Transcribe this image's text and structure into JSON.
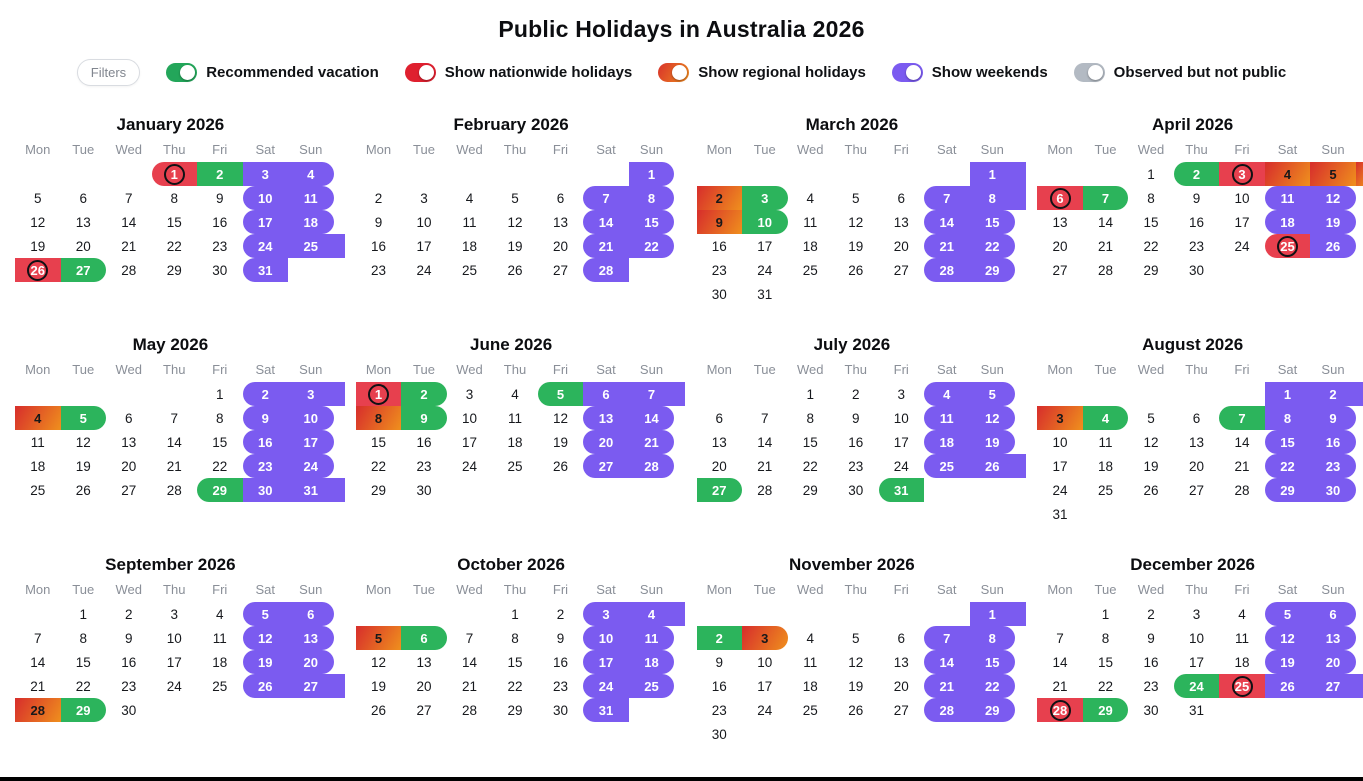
{
  "title": "Public Holidays in Australia 2026",
  "filters": {
    "button_label": "Filters",
    "toggles": [
      {
        "label": "Recommended vacation",
        "color": "#23a65a",
        "on": true
      },
      {
        "label": "Show nationwide holidays",
        "color": "#df202f",
        "on": true
      },
      {
        "label": "Show regional holidays",
        "gradient": [
          "#d8322b",
          "#ee8b1e"
        ],
        "on": true
      },
      {
        "label": "Show weekends",
        "color": "#7b5bf0",
        "on": true
      },
      {
        "label": "Observed but not public",
        "color": "#b3bac3",
        "on": true
      }
    ]
  },
  "calendar": {
    "weekday_labels": [
      "Mon",
      "Tue",
      "Wed",
      "Thu",
      "Fri",
      "Sat",
      "Sun"
    ],
    "colors": {
      "nationwide": "#e7404e",
      "vacation": "#2cb45c",
      "weekend": "#7b5bf0",
      "regional_from": "#d8322b",
      "regional_to": "#ee8b1e"
    },
    "months": [
      {
        "name": "January 2026",
        "days": 31,
        "first_dow": 3,
        "highlights": [
          {
            "day": 1,
            "type": "nationwide",
            "circled": true
          },
          {
            "day": 2,
            "type": "vacation"
          },
          {
            "day": 3,
            "type": "weekend"
          },
          {
            "day": 4,
            "type": "weekend"
          },
          {
            "day": 10,
            "type": "weekend"
          },
          {
            "day": 11,
            "type": "weekend"
          },
          {
            "day": 17,
            "type": "weekend"
          },
          {
            "day": 18,
            "type": "weekend"
          },
          {
            "day": 24,
            "type": "weekend"
          },
          {
            "day": 25,
            "type": "weekend"
          },
          {
            "day": 26,
            "type": "nationwide",
            "circled": true
          },
          {
            "day": 27,
            "type": "vacation"
          },
          {
            "day": 31,
            "type": "weekend"
          }
        ]
      },
      {
        "name": "February 2026",
        "days": 28,
        "first_dow": 6,
        "highlights": [
          {
            "day": 1,
            "type": "weekend"
          },
          {
            "day": 7,
            "type": "weekend"
          },
          {
            "day": 8,
            "type": "weekend"
          },
          {
            "day": 14,
            "type": "weekend"
          },
          {
            "day": 15,
            "type": "weekend"
          },
          {
            "day": 21,
            "type": "weekend"
          },
          {
            "day": 22,
            "type": "weekend"
          },
          {
            "day": 28,
            "type": "weekend"
          }
        ]
      },
      {
        "name": "March 2026",
        "days": 31,
        "first_dow": 6,
        "highlights": [
          {
            "day": 1,
            "type": "weekend"
          },
          {
            "day": 2,
            "type": "regional"
          },
          {
            "day": 3,
            "type": "vacation"
          },
          {
            "day": 7,
            "type": "weekend"
          },
          {
            "day": 8,
            "type": "weekend"
          },
          {
            "day": 9,
            "type": "regional"
          },
          {
            "day": 10,
            "type": "vacation"
          },
          {
            "day": 14,
            "type": "weekend"
          },
          {
            "day": 15,
            "type": "weekend"
          },
          {
            "day": 21,
            "type": "weekend"
          },
          {
            "day": 22,
            "type": "weekend"
          },
          {
            "day": 28,
            "type": "weekend"
          },
          {
            "day": 29,
            "type": "weekend"
          }
        ]
      },
      {
        "name": "April 2026",
        "days": 30,
        "first_dow": 2,
        "highlights": [
          {
            "day": 2,
            "type": "vacation"
          },
          {
            "day": 3,
            "type": "nationwide",
            "circled": true
          },
          {
            "day": 4,
            "type": "regional"
          },
          {
            "day": 5,
            "type": "regional"
          },
          {
            "day": 6,
            "type": "nationwide",
            "circled": true
          },
          {
            "day": 7,
            "type": "vacation"
          },
          {
            "day": 11,
            "type": "weekend"
          },
          {
            "day": 12,
            "type": "weekend"
          },
          {
            "day": 18,
            "type": "weekend"
          },
          {
            "day": 19,
            "type": "weekend"
          },
          {
            "day": 25,
            "type": "nationwide",
            "circled": true
          },
          {
            "day": 26,
            "type": "weekend"
          }
        ]
      },
      {
        "name": "May 2026",
        "days": 31,
        "first_dow": 4,
        "highlights": [
          {
            "day": 2,
            "type": "weekend"
          },
          {
            "day": 3,
            "type": "weekend"
          },
          {
            "day": 4,
            "type": "regional"
          },
          {
            "day": 5,
            "type": "vacation"
          },
          {
            "day": 9,
            "type": "weekend"
          },
          {
            "day": 10,
            "type": "weekend"
          },
          {
            "day": 16,
            "type": "weekend"
          },
          {
            "day": 17,
            "type": "weekend"
          },
          {
            "day": 23,
            "type": "weekend"
          },
          {
            "day": 24,
            "type": "weekend"
          },
          {
            "day": 29,
            "type": "vacation"
          },
          {
            "day": 30,
            "type": "weekend"
          },
          {
            "day": 31,
            "type": "weekend"
          }
        ]
      },
      {
        "name": "June 2026",
        "days": 30,
        "first_dow": 0,
        "highlights": [
          {
            "day": 1,
            "type": "nationwide",
            "circled": true
          },
          {
            "day": 2,
            "type": "vacation"
          },
          {
            "day": 5,
            "type": "vacation"
          },
          {
            "day": 6,
            "type": "weekend"
          },
          {
            "day": 7,
            "type": "weekend"
          },
          {
            "day": 8,
            "type": "regional"
          },
          {
            "day": 9,
            "type": "vacation"
          },
          {
            "day": 13,
            "type": "weekend"
          },
          {
            "day": 14,
            "type": "weekend"
          },
          {
            "day": 20,
            "type": "weekend"
          },
          {
            "day": 21,
            "type": "weekend"
          },
          {
            "day": 27,
            "type": "weekend"
          },
          {
            "day": 28,
            "type": "weekend"
          }
        ]
      },
      {
        "name": "July 2026",
        "days": 31,
        "first_dow": 2,
        "highlights": [
          {
            "day": 4,
            "type": "weekend"
          },
          {
            "day": 5,
            "type": "weekend"
          },
          {
            "day": 11,
            "type": "weekend"
          },
          {
            "day": 12,
            "type": "weekend"
          },
          {
            "day": 18,
            "type": "weekend"
          },
          {
            "day": 19,
            "type": "weekend"
          },
          {
            "day": 25,
            "type": "weekend"
          },
          {
            "day": 26,
            "type": "weekend"
          },
          {
            "day": 27,
            "type": "vacation"
          },
          {
            "day": 31,
            "type": "vacation"
          }
        ]
      },
      {
        "name": "August 2026",
        "days": 31,
        "first_dow": 5,
        "highlights": [
          {
            "day": 1,
            "type": "weekend"
          },
          {
            "day": 2,
            "type": "weekend"
          },
          {
            "day": 3,
            "type": "regional"
          },
          {
            "day": 4,
            "type": "vacation"
          },
          {
            "day": 7,
            "type": "vacation"
          },
          {
            "day": 8,
            "type": "weekend"
          },
          {
            "day": 9,
            "type": "weekend"
          },
          {
            "day": 15,
            "type": "weekend"
          },
          {
            "day": 16,
            "type": "weekend"
          },
          {
            "day": 22,
            "type": "weekend"
          },
          {
            "day": 23,
            "type": "weekend"
          },
          {
            "day": 29,
            "type": "weekend"
          },
          {
            "day": 30,
            "type": "weekend"
          }
        ]
      },
      {
        "name": "September 2026",
        "days": 30,
        "first_dow": 1,
        "highlights": [
          {
            "day": 5,
            "type": "weekend"
          },
          {
            "day": 6,
            "type": "weekend"
          },
          {
            "day": 12,
            "type": "weekend"
          },
          {
            "day": 13,
            "type": "weekend"
          },
          {
            "day": 19,
            "type": "weekend"
          },
          {
            "day": 20,
            "type": "weekend"
          },
          {
            "day": 26,
            "type": "weekend"
          },
          {
            "day": 27,
            "type": "weekend"
          },
          {
            "day": 28,
            "type": "regional"
          },
          {
            "day": 29,
            "type": "vacation"
          }
        ]
      },
      {
        "name": "October 2026",
        "days": 31,
        "first_dow": 3,
        "highlights": [
          {
            "day": 3,
            "type": "weekend"
          },
          {
            "day": 4,
            "type": "weekend"
          },
          {
            "day": 5,
            "type": "regional"
          },
          {
            "day": 6,
            "type": "vacation"
          },
          {
            "day": 10,
            "type": "weekend"
          },
          {
            "day": 11,
            "type": "weekend"
          },
          {
            "day": 17,
            "type": "weekend"
          },
          {
            "day": 18,
            "type": "weekend"
          },
          {
            "day": 24,
            "type": "weekend"
          },
          {
            "day": 25,
            "type": "weekend"
          },
          {
            "day": 31,
            "type": "weekend"
          }
        ]
      },
      {
        "name": "November 2026",
        "days": 30,
        "first_dow": 6,
        "highlights": [
          {
            "day": 1,
            "type": "weekend"
          },
          {
            "day": 2,
            "type": "vacation"
          },
          {
            "day": 3,
            "type": "regional"
          },
          {
            "day": 7,
            "type": "weekend"
          },
          {
            "day": 8,
            "type": "weekend"
          },
          {
            "day": 14,
            "type": "weekend"
          },
          {
            "day": 15,
            "type": "weekend"
          },
          {
            "day": 21,
            "type": "weekend"
          },
          {
            "day": 22,
            "type": "weekend"
          },
          {
            "day": 28,
            "type": "weekend"
          },
          {
            "day": 29,
            "type": "weekend"
          }
        ]
      },
      {
        "name": "December 2026",
        "days": 31,
        "first_dow": 1,
        "highlights": [
          {
            "day": 5,
            "type": "weekend"
          },
          {
            "day": 6,
            "type": "weekend"
          },
          {
            "day": 12,
            "type": "weekend"
          },
          {
            "day": 13,
            "type": "weekend"
          },
          {
            "day": 19,
            "type": "weekend"
          },
          {
            "day": 20,
            "type": "weekend"
          },
          {
            "day": 24,
            "type": "vacation"
          },
          {
            "day": 25,
            "type": "nationwide",
            "circled": true
          },
          {
            "day": 26,
            "type": "weekend"
          },
          {
            "day": 27,
            "type": "weekend"
          },
          {
            "day": 28,
            "type": "nationwide",
            "circled": true
          },
          {
            "day": 29,
            "type": "vacation"
          }
        ]
      }
    ]
  }
}
